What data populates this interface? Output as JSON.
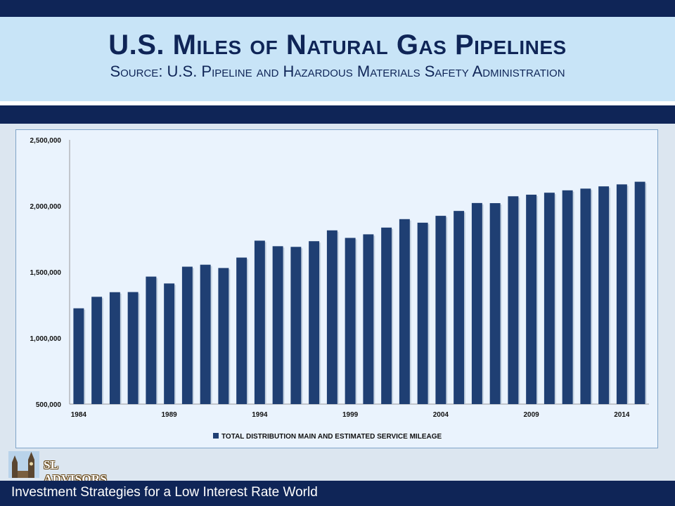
{
  "header": {
    "title": "U.S. Miles of Natural Gas Pipelines",
    "subtitle": "Source: U.S. Pipeline and Hazardous Materials Safety Administration"
  },
  "logo": {
    "text": "SL ADVISORS"
  },
  "footer": {
    "text": "Investment Strategies for a Low Interest Rate World"
  },
  "colors": {
    "bar": "#1f3f73",
    "navy": "#0f2557",
    "title_band": "#c8e4f7"
  },
  "chart_data": {
    "type": "bar",
    "x": [
      1984,
      1985,
      1986,
      1987,
      1988,
      1989,
      1990,
      1991,
      1992,
      1993,
      1994,
      1995,
      1996,
      1997,
      1998,
      1999,
      2000,
      2001,
      2002,
      2003,
      2004,
      2005,
      2006,
      2007,
      2008,
      2009,
      2010,
      2011,
      2012,
      2013,
      2014,
      2015
    ],
    "series": [
      {
        "name": "TOTAL DISTRIBUTION MAIN AND ESTIMATED SERVICE MILEAGE",
        "values": [
          1225000,
          1312000,
          1347000,
          1348000,
          1465000,
          1413000,
          1540000,
          1555000,
          1530000,
          1609000,
          1737000,
          1695000,
          1690000,
          1733000,
          1815000,
          1758000,
          1785000,
          1836000,
          1900000,
          1873000,
          1925000,
          1962000,
          2022000,
          2021000,
          2073000,
          2085000,
          2100000,
          2118000,
          2131000,
          2148000,
          2163000,
          2183000
        ]
      }
    ],
    "tick_labels_x": [
      "1984",
      "1989",
      "1994",
      "1999",
      "2004",
      "2009",
      "2014"
    ],
    "ylim": [
      500000,
      2500000
    ],
    "yticks": [
      "500,000",
      "1,000,000",
      "1,500,000",
      "2,000,000",
      "2,500,000"
    ],
    "legend_position": "bottom"
  }
}
